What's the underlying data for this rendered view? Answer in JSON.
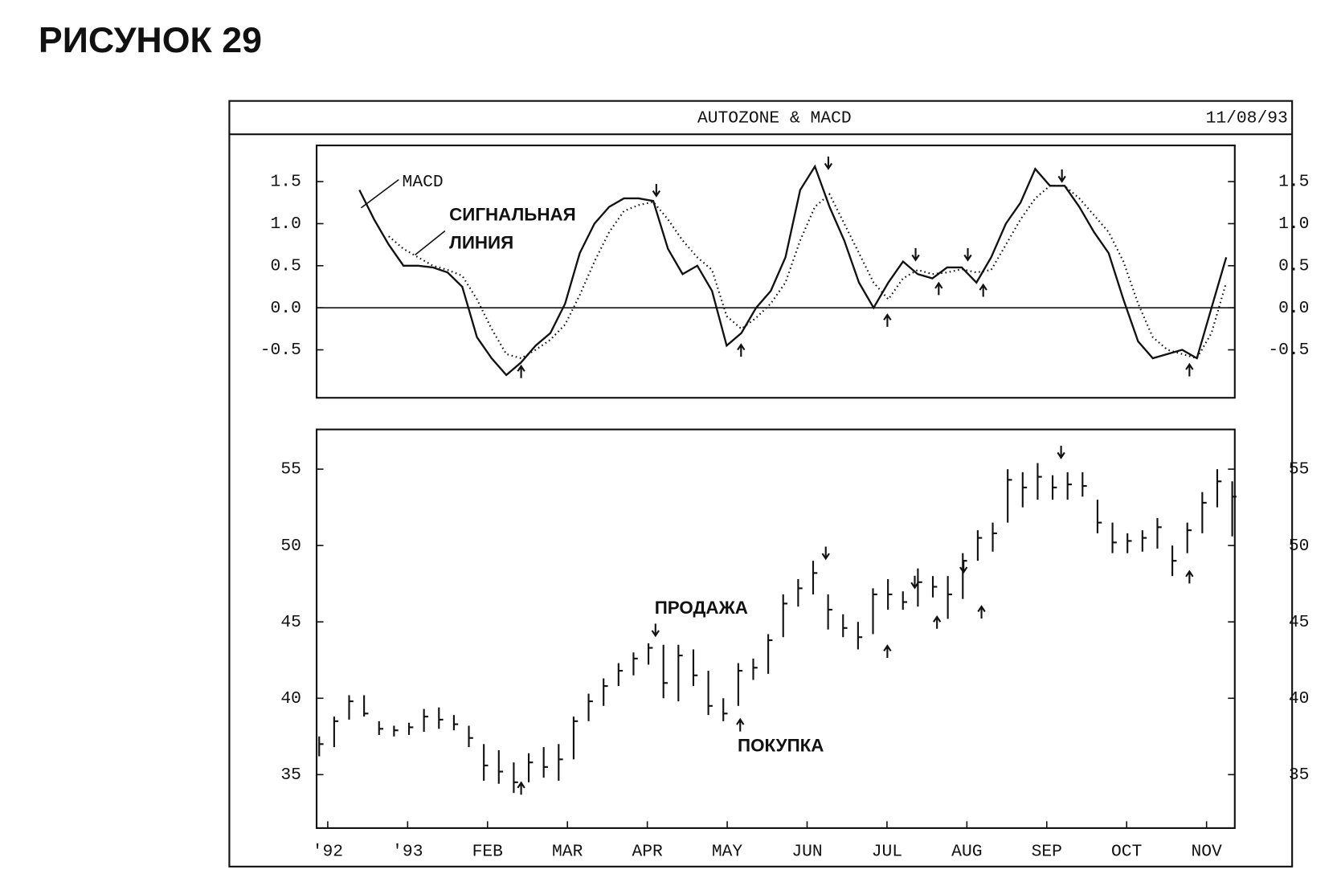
{
  "heading": "РИСУНОК 29",
  "title": "AUTOZONE & MACD",
  "date": "11/08/93",
  "chart_data": [
    {
      "type": "line",
      "ylim": [
        -1.07,
        1.93
      ],
      "yticks": [
        {
          "value": 1.5,
          "label": "1.5"
        },
        {
          "value": 1.0,
          "label": "1.0"
        },
        0.5,
        {
          "value": 0.0,
          "label": "0.0"
        },
        -0.5
      ],
      "zero_line": true,
      "series": [
        {
          "name": "MACD",
          "color": "#111111",
          "dash": "solid",
          "values": [
            1.4,
            1.05,
            0.75,
            0.5,
            0.5,
            0.48,
            0.42,
            0.25,
            -0.35,
            -0.6,
            -0.8,
            -0.65,
            -0.45,
            -0.3,
            0.05,
            0.65,
            1.0,
            1.2,
            1.3,
            1.3,
            1.27,
            0.7,
            0.4,
            0.5,
            0.2,
            -0.45,
            -0.3,
            0.0,
            0.2,
            0.6,
            1.4,
            1.68,
            1.2,
            0.8,
            0.3,
            0.0,
            0.3,
            0.55,
            0.4,
            0.35,
            0.48,
            0.48,
            0.3,
            0.6,
            1.0,
            1.25,
            1.65,
            1.45,
            1.45,
            1.2,
            0.9,
            0.65,
            0.1,
            -0.4,
            -0.6,
            -0.55,
            -0.5,
            -0.6,
            0.0,
            0.6
          ]
        },
        {
          "name": "СИГНАЛЬНАЯ ЛИНИЯ",
          "color": "#111111",
          "dash": "dotted",
          "values": [
            null,
            null,
            0.85,
            0.7,
            0.6,
            0.5,
            0.45,
            0.38,
            0.1,
            -0.25,
            -0.55,
            -0.6,
            -0.5,
            -0.38,
            -0.2,
            0.15,
            0.55,
            0.9,
            1.15,
            1.22,
            1.26,
            1.05,
            0.8,
            0.6,
            0.45,
            -0.1,
            -0.25,
            -0.12,
            0.05,
            0.3,
            0.8,
            1.2,
            1.35,
            1.0,
            0.65,
            0.3,
            0.1,
            0.35,
            0.45,
            0.4,
            0.42,
            0.46,
            0.42,
            0.45,
            0.75,
            1.05,
            1.3,
            1.45,
            1.45,
            1.3,
            1.1,
            0.9,
            0.55,
            0.05,
            -0.35,
            -0.5,
            -0.55,
            -0.6,
            -0.3,
            0.3
          ]
        }
      ]
    },
    {
      "type": "hlc",
      "color": "#111111",
      "ylim": [
        31.5,
        57.6
      ],
      "yticks": [
        35,
        40,
        45,
        50,
        55
      ],
      "categories": [
        "'92",
        "'93",
        "FEB",
        "MAR",
        "APR",
        "MAY",
        "JUN",
        "JUL",
        "AUG",
        "SEP",
        "OCT",
        "NOV"
      ],
      "annotations": [
        "ПРОДАЖА",
        "ПОКУПКА"
      ],
      "high": [
        37.5,
        38.8,
        40.2,
        40.2,
        38.5,
        38.2,
        38.4,
        39.3,
        39.4,
        38.9,
        38.2,
        37.0,
        36.6,
        35.8,
        36.4,
        36.8,
        37.0,
        38.8,
        40.3,
        41.3,
        42.3,
        43.0,
        43.6,
        43.5,
        43.5,
        43.2,
        41.8,
        40.0,
        42.3,
        42.6,
        44.2,
        46.8,
        47.8,
        49.0,
        46.8,
        45.5,
        45.0,
        47.2,
        47.8,
        47.0,
        48.5,
        48.0,
        48.0,
        49.5,
        51.0,
        51.5,
        55.0,
        54.8,
        55.4,
        54.6,
        54.8,
        54.8,
        53.0,
        51.5,
        50.8,
        51.0,
        51.8,
        50.0,
        51.5,
        53.5,
        55.0,
        54.2
      ],
      "low": [
        36.2,
        36.8,
        38.6,
        38.8,
        37.6,
        37.5,
        37.6,
        37.8,
        38.0,
        37.9,
        36.8,
        34.6,
        34.4,
        33.8,
        34.5,
        34.8,
        34.6,
        36.0,
        38.5,
        39.5,
        40.8,
        41.5,
        42.2,
        40.0,
        39.8,
        40.8,
        38.9,
        38.5,
        39.5,
        41.2,
        41.6,
        44.0,
        46.0,
        46.8,
        44.5,
        44.0,
        43.2,
        44.2,
        45.8,
        45.8,
        46.0,
        46.6,
        45.2,
        46.5,
        49.0,
        49.6,
        51.5,
        52.5,
        53.0,
        53.0,
        53.0,
        53.2,
        50.8,
        49.5,
        49.5,
        49.6,
        49.8,
        48.0,
        49.5,
        50.8,
        52.5,
        50.6
      ],
      "close": [
        37.0,
        38.5,
        39.8,
        39.0,
        38.0,
        37.9,
        38.1,
        38.8,
        38.6,
        38.3,
        37.4,
        35.6,
        35.2,
        34.5,
        35.8,
        35.5,
        36.0,
        38.5,
        39.8,
        40.8,
        41.8,
        42.6,
        43.3,
        41.0,
        42.8,
        41.5,
        39.5,
        39.0,
        41.8,
        42.0,
        43.8,
        46.2,
        47.2,
        48.2,
        45.8,
        44.6,
        44.0,
        46.8,
        46.8,
        46.3,
        47.6,
        47.3,
        46.8,
        49.0,
        50.5,
        50.8,
        54.3,
        53.8,
        54.5,
        53.8,
        54.0,
        53.9,
        51.5,
        50.2,
        50.3,
        50.5,
        51.2,
        49.0,
        51.0,
        52.8,
        54.2,
        53.2
      ]
    }
  ]
}
